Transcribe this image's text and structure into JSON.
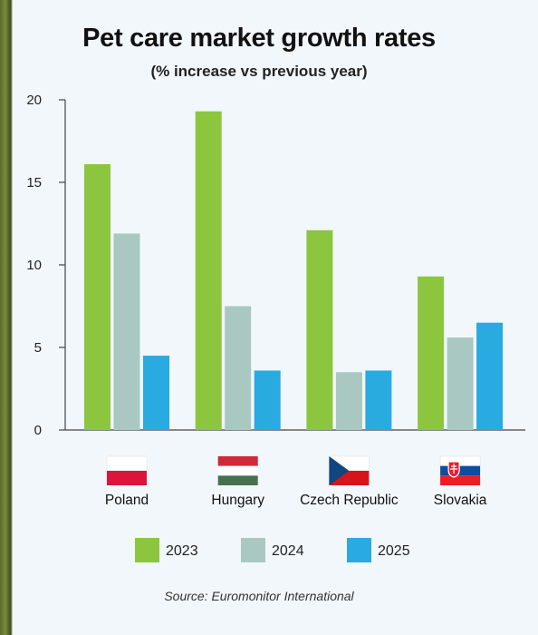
{
  "title": "Pet care market growth rates",
  "subtitle": "(% increase vs previous year)",
  "source": "Source: Euromonitor International",
  "colors": {
    "2023": "#8cc63f",
    "2024": "#a9c8c2",
    "2025": "#29aae1"
  },
  "chart_data": {
    "type": "bar",
    "categories": [
      "Poland",
      "Hungary",
      "Czech Republic",
      "Slovakia"
    ],
    "flags": [
      "poland-flag-icon",
      "hungary-flag-icon",
      "czech-flag-icon",
      "slovakia-flag-icon"
    ],
    "series": [
      {
        "name": "2023",
        "values": [
          16.1,
          19.3,
          12.1,
          9.3
        ]
      },
      {
        "name": "2024",
        "values": [
          11.9,
          7.5,
          3.5,
          5.6
        ]
      },
      {
        "name": "2025",
        "values": [
          4.5,
          3.6,
          3.6,
          6.5
        ]
      }
    ],
    "ylim": [
      0,
      20
    ],
    "yticks": [
      0,
      5,
      10,
      15,
      20
    ],
    "grid": false,
    "legend": "bottom"
  }
}
